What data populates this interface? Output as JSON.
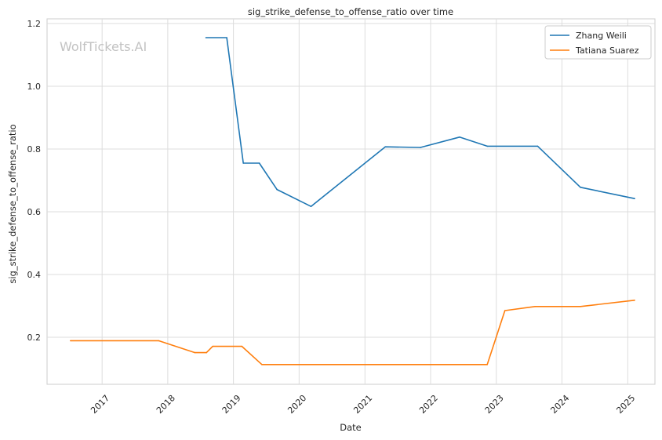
{
  "chart_data": {
    "type": "line",
    "title": "sig_strike_defense_to_offense_ratio over time",
    "xlabel": "Date",
    "ylabel": "sig_strike_defense_to_offense_ratio",
    "watermark": "WolfTickets.AI",
    "legend_position": "top-right",
    "grid": true,
    "x_type": "date",
    "xlim": [
      "2016-03-01",
      "2025-06-01"
    ],
    "ylim": [
      0.05,
      1.215
    ],
    "x_ticks": [
      "2017",
      "2018",
      "2019",
      "2020",
      "2021",
      "2022",
      "2023",
      "2024",
      "2025"
    ],
    "y_ticks": [
      0.2,
      0.4,
      0.6,
      0.8,
      1.0,
      1.2
    ],
    "y_tick_labels": [
      "0.2",
      "0.4",
      "0.6",
      "0.8",
      "1.0",
      "1.2"
    ],
    "series": [
      {
        "name": "Zhang Weili",
        "color": "#1f77b4",
        "points": [
          {
            "x": "2018-08-01",
            "y": 1.155
          },
          {
            "x": "2018-11-25",
            "y": 1.155
          },
          {
            "x": "2019-02-25",
            "y": 0.755
          },
          {
            "x": "2019-05-25",
            "y": 0.755
          },
          {
            "x": "2019-08-31",
            "y": 0.671
          },
          {
            "x": "2020-03-07",
            "y": 0.617
          },
          {
            "x": "2021-04-24",
            "y": 0.807
          },
          {
            "x": "2021-11-06",
            "y": 0.805
          },
          {
            "x": "2022-06-11",
            "y": 0.838
          },
          {
            "x": "2022-11-12",
            "y": 0.809
          },
          {
            "x": "2023-08-19",
            "y": 0.809
          },
          {
            "x": "2024-04-13",
            "y": 0.678
          },
          {
            "x": "2025-02-08",
            "y": 0.642
          }
        ]
      },
      {
        "name": "Tatiana Suarez",
        "color": "#ff7f0e",
        "points": [
          {
            "x": "2016-07-09",
            "y": 0.189
          },
          {
            "x": "2017-11-11",
            "y": 0.189
          },
          {
            "x": "2018-06-01",
            "y": 0.151
          },
          {
            "x": "2018-08-04",
            "y": 0.151
          },
          {
            "x": "2018-09-08",
            "y": 0.171
          },
          {
            "x": "2019-02-17",
            "y": 0.171
          },
          {
            "x": "2019-06-08",
            "y": 0.113
          },
          {
            "x": "2022-11-12",
            "y": 0.113
          },
          {
            "x": "2023-02-18",
            "y": 0.285
          },
          {
            "x": "2023-08-05",
            "y": 0.298
          },
          {
            "x": "2024-04-13",
            "y": 0.298
          },
          {
            "x": "2025-02-08",
            "y": 0.318
          }
        ]
      }
    ]
  }
}
